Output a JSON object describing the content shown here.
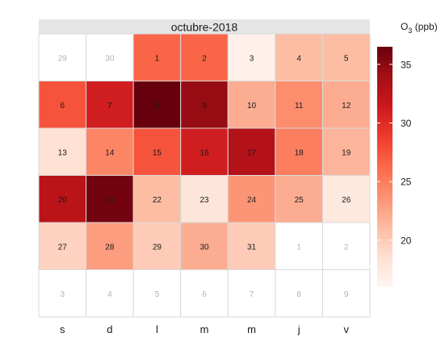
{
  "chart_data": {
    "type": "heatmap",
    "title": "octubre-2018",
    "weekday_labels": [
      "s",
      "d",
      "l",
      "m",
      "m",
      "j",
      "v"
    ],
    "colorbar": {
      "label_main": "O",
      "label_sub": "3",
      "label_rest": " (ppb)",
      "ticks": [
        20,
        25,
        30,
        35
      ],
      "range": [
        16,
        36.5
      ],
      "colors": [
        "#fff5f0",
        "#fee0d2",
        "#fcbba1",
        "#fc9272",
        "#fb6a4a",
        "#ef3b2c",
        "#cb181d",
        "#a50f15",
        "#67000d"
      ]
    },
    "days": [
      {
        "day": 29,
        "month": "prev",
        "value": null
      },
      {
        "day": 30,
        "month": "prev",
        "value": null
      },
      {
        "day": 1,
        "month": "current",
        "value": 26.5
      },
      {
        "day": 2,
        "month": "current",
        "value": 26.5
      },
      {
        "day": 3,
        "month": "current",
        "value": 16.5
      },
      {
        "day": 4,
        "month": "current",
        "value": 21.0
      },
      {
        "day": 5,
        "month": "current",
        "value": 21.0
      },
      {
        "day": 6,
        "month": "current",
        "value": 27.5
      },
      {
        "day": 7,
        "month": "current",
        "value": 31.0
      },
      {
        "day": 8,
        "month": "current",
        "value": 36.5
      },
      {
        "day": 9,
        "month": "current",
        "value": 34.5
      },
      {
        "day": 10,
        "month": "current",
        "value": 22.0
      },
      {
        "day": 11,
        "month": "current",
        "value": 24.0
      },
      {
        "day": 12,
        "month": "current",
        "value": 22.0
      },
      {
        "day": 13,
        "month": "current",
        "value": 18.5
      },
      {
        "day": 14,
        "month": "current",
        "value": 24.5
      },
      {
        "day": 15,
        "month": "current",
        "value": 27.5
      },
      {
        "day": 16,
        "month": "current",
        "value": 31.0
      },
      {
        "day": 17,
        "month": "current",
        "value": 33.0
      },
      {
        "day": 18,
        "month": "current",
        "value": 25.0
      },
      {
        "day": 19,
        "month": "current",
        "value": 21.5
      },
      {
        "day": 20,
        "month": "current",
        "value": 32.5
      },
      {
        "day": 21,
        "month": "current",
        "value": 36.0
      },
      {
        "day": 22,
        "month": "current",
        "value": 21.0
      },
      {
        "day": 23,
        "month": "current",
        "value": 18.0
      },
      {
        "day": 24,
        "month": "current",
        "value": 23.5
      },
      {
        "day": 25,
        "month": "current",
        "value": 22.0
      },
      {
        "day": 26,
        "month": "current",
        "value": 17.5
      },
      {
        "day": 27,
        "month": "current",
        "value": 19.5
      },
      {
        "day": 28,
        "month": "current",
        "value": 23.0
      },
      {
        "day": 29,
        "month": "current",
        "value": 20.0
      },
      {
        "day": 30,
        "month": "current",
        "value": 22.0
      },
      {
        "day": 31,
        "month": "current",
        "value": 20.0
      },
      {
        "day": 1,
        "month": "next",
        "value": null
      },
      {
        "day": 2,
        "month": "next",
        "value": null
      },
      {
        "day": 3,
        "month": "next",
        "value": null
      },
      {
        "day": 4,
        "month": "next",
        "value": null
      },
      {
        "day": 5,
        "month": "next",
        "value": null
      },
      {
        "day": 6,
        "month": "next",
        "value": null
      },
      {
        "day": 7,
        "month": "next",
        "value": null
      },
      {
        "day": 8,
        "month": "next",
        "value": null
      },
      {
        "day": 9,
        "month": "next",
        "value": null
      }
    ]
  }
}
